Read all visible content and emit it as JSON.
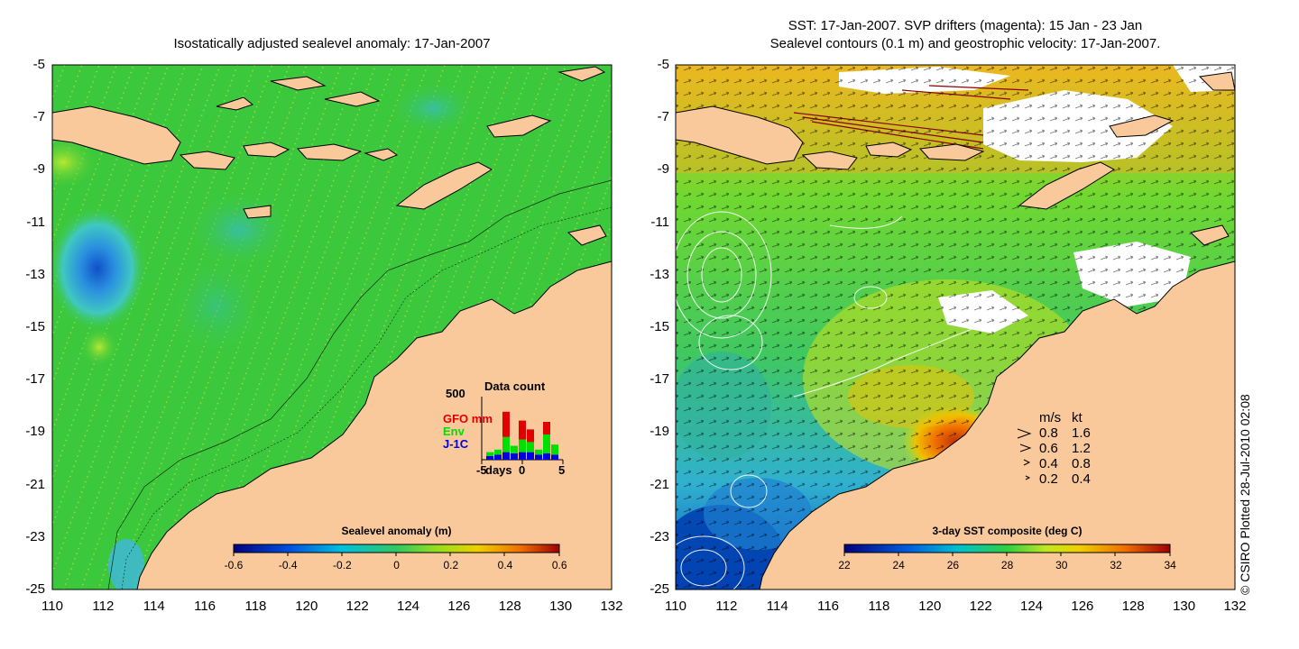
{
  "left_panel": {
    "title": "Isostatically adjusted sealevel anomaly: 17-Jan-2007",
    "colorbar": {
      "title": "Sealevel anomaly (m)",
      "ticks": [
        "-0.6",
        "-0.4",
        "-0.2",
        "0",
        "0.2",
        "0.4",
        "0.6"
      ]
    },
    "data_count": {
      "title": "Data count",
      "ymax_label": "500",
      "legend": [
        {
          "label": "GFO mm",
          "color": "#e00000"
        },
        {
          "label": "Env",
          "color": "#00e000"
        },
        {
          "label": "J-1C",
          "color": "#0000e0"
        }
      ],
      "xlabel": "days",
      "x_ticks": [
        "-5",
        "0",
        "5"
      ],
      "bars": [
        {
          "day": -4,
          "gfo": 0,
          "env": 30,
          "j1c": 30
        },
        {
          "day": -3,
          "gfo": 0,
          "env": 40,
          "j1c": 40
        },
        {
          "day": -2,
          "gfo": 200,
          "env": 120,
          "j1c": 60
        },
        {
          "day": -1,
          "gfo": 0,
          "env": 60,
          "j1c": 50
        },
        {
          "day": 0,
          "gfo": 150,
          "env": 100,
          "j1c": 60
        },
        {
          "day": 1,
          "gfo": 100,
          "env": 80,
          "j1c": 60
        },
        {
          "day": 2,
          "gfo": 0,
          "env": 40,
          "j1c": 40
        },
        {
          "day": 3,
          "gfo": 100,
          "env": 150,
          "j1c": 50
        },
        {
          "day": 4,
          "gfo": 0,
          "env": 80,
          "j1c": 40
        }
      ]
    }
  },
  "right_panel": {
    "title_line1": "SST: 17-Jan-2007. SVP drifters (magenta): 15 Jan - 23 Jan",
    "title_line2": "Sealevel contours (0.1 m) and geostrophic velocity: 17-Jan-2007.",
    "colorbar": {
      "title": "3-day SST composite (deg C)",
      "ticks": [
        "22",
        "24",
        "26",
        "28",
        "30",
        "32",
        "34"
      ]
    },
    "velocity_legend": {
      "header_ms": "m/s",
      "header_kt": "kt",
      "rows": [
        {
          "ms": "0.8",
          "kt": "1.6"
        },
        {
          "ms": "0.6",
          "kt": "1.2"
        },
        {
          "ms": "0.4",
          "kt": "0.8"
        },
        {
          "ms": "0.2",
          "kt": "0.4"
        }
      ]
    }
  },
  "axes": {
    "y_ticks": [
      "-5",
      "-7",
      "-9",
      "-11",
      "-13",
      "-15",
      "-17",
      "-19",
      "-21",
      "-23",
      "-25"
    ],
    "x_ticks": [
      "110",
      "112",
      "114",
      "116",
      "118",
      "120",
      "122",
      "124",
      "126",
      "128",
      "130",
      "132"
    ]
  },
  "credit": "© CSIRO Plotted 28-Jul-2010 02:08",
  "colors": {
    "land": "#f9c89b",
    "ocean_left": "#3cc83c",
    "ocean_right": "#5cd43a"
  }
}
